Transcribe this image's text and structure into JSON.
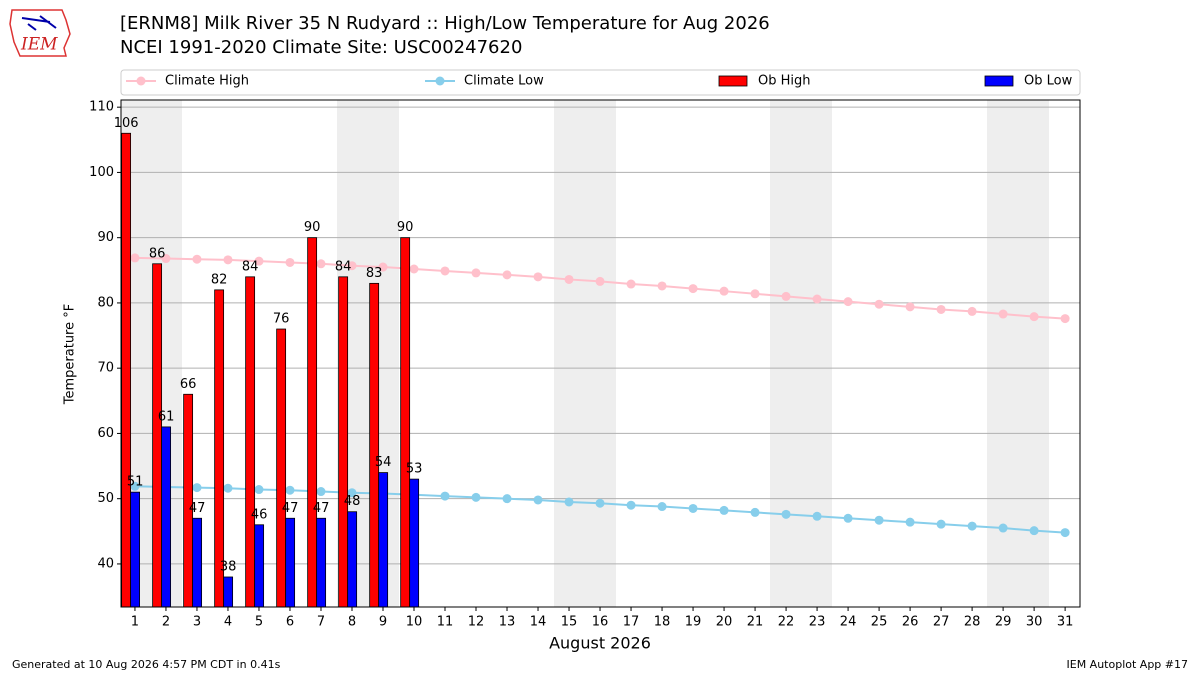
{
  "logo": {
    "text": "IEM"
  },
  "chart_data": {
    "type": "bar",
    "title": "[ERNM8] Milk River 35 N Rudyard :: High/Low Temperature for Aug 2026",
    "subtitle": "NCEI 1991-2020 Climate Site: USC00247620",
    "xlabel": "August 2026",
    "ylabel": "Temperature °F",
    "x": [
      1,
      2,
      3,
      4,
      5,
      6,
      7,
      8,
      9,
      10,
      11,
      12,
      13,
      14,
      15,
      16,
      17,
      18,
      19,
      20,
      21,
      22,
      23,
      24,
      25,
      26,
      27,
      28,
      29,
      30,
      31
    ],
    "xlim": [
      0.55,
      31.48
    ],
    "xticks": [
      1,
      2,
      3,
      4,
      5,
      6,
      7,
      8,
      9,
      10,
      11,
      12,
      13,
      14,
      15,
      16,
      17,
      18,
      19,
      20,
      21,
      22,
      23,
      24,
      25,
      26,
      27,
      28,
      29,
      30,
      31
    ],
    "ylim": [
      33.4,
      111.1
    ],
    "yticks": [
      40,
      50,
      60,
      70,
      80,
      90,
      100,
      110
    ],
    "grid": true,
    "legend": "top",
    "series": [
      {
        "name": "Climate High",
        "type": "line",
        "color": "#ffc0cb",
        "values": [
          86.9,
          86.8,
          86.7,
          86.6,
          86.4,
          86.2,
          86.0,
          85.7,
          85.5,
          85.2,
          84.9,
          84.6,
          84.3,
          84.0,
          83.6,
          83.3,
          82.9,
          82.6,
          82.2,
          81.8,
          81.4,
          81.0,
          80.6,
          80.2,
          79.8,
          79.4,
          79.0,
          78.7,
          78.3,
          77.9,
          77.6
        ]
      },
      {
        "name": "Climate Low",
        "type": "line",
        "color": "#87ceeb",
        "values": [
          51.9,
          51.8,
          51.7,
          51.6,
          51.4,
          51.3,
          51.1,
          50.9,
          50.8,
          50.6,
          50.4,
          50.2,
          50.0,
          49.8,
          49.5,
          49.3,
          49.0,
          48.8,
          48.5,
          48.2,
          47.9,
          47.6,
          47.3,
          47.0,
          46.7,
          46.4,
          46.1,
          45.8,
          45.5,
          45.1,
          44.8
        ]
      },
      {
        "name": "Ob High",
        "type": "bar",
        "color": "#ff0000",
        "values": [
          106,
          86,
          66,
          82,
          84,
          76,
          90,
          84,
          83,
          90,
          null,
          null,
          null,
          null,
          null,
          null,
          null,
          null,
          null,
          null,
          null,
          null,
          null,
          null,
          null,
          null,
          null,
          null,
          null,
          null,
          null
        ]
      },
      {
        "name": "Ob Low",
        "type": "bar",
        "color": "#0000ff",
        "values": [
          51,
          61,
          47,
          38,
          46,
          47,
          47,
          48,
          54,
          53,
          null,
          null,
          null,
          null,
          null,
          null,
          null,
          null,
          null,
          null,
          null,
          null,
          null,
          null,
          null,
          null,
          null,
          null,
          null,
          null,
          null
        ]
      }
    ]
  },
  "footer": {
    "left": "Generated at 10 Aug 2026 4:57 PM CDT in 0.41s",
    "right": "IEM Autoplot App #17"
  }
}
